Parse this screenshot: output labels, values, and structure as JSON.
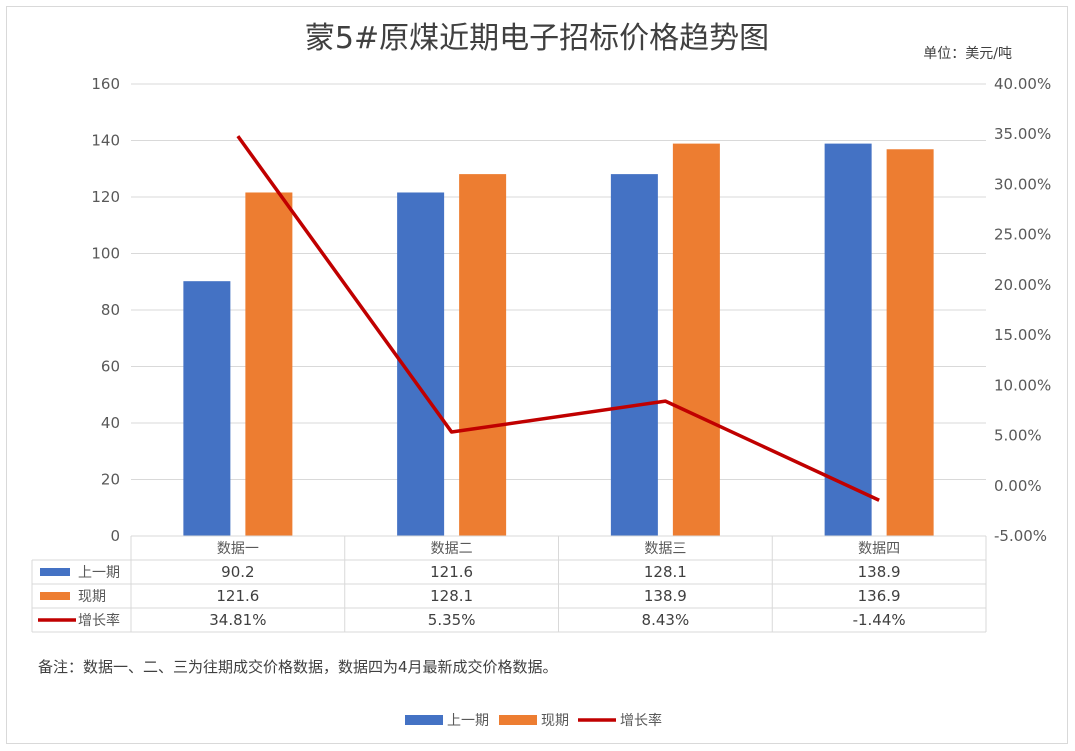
{
  "title": "蒙5#原煤近期电子招标价格趋势图",
  "unit": "单位：美元/吨",
  "note": "备注：数据一、二、三为往期成交价格数据，数据四为4月最新成交价格数据。",
  "colors": {
    "prev": "#4472C4",
    "curr": "#ED7D31",
    "rate": "#C00000"
  },
  "chart_data": {
    "type": "bar",
    "categories": [
      "数据一",
      "数据二",
      "数据三",
      "数据四"
    ],
    "series": [
      {
        "name": "上一期",
        "kind": "bar",
        "axis": "left",
        "values": [
          90.2,
          121.6,
          128.1,
          138.9
        ],
        "labels": [
          "90.2",
          "121.6",
          "128.1",
          "138.9"
        ]
      },
      {
        "name": "现期",
        "kind": "bar",
        "axis": "left",
        "values": [
          121.6,
          128.1,
          138.9,
          136.9
        ],
        "labels": [
          "121.6",
          "128.1",
          "138.9",
          "136.9"
        ]
      },
      {
        "name": "增长率",
        "kind": "line",
        "axis": "right",
        "values": [
          34.81,
          5.35,
          8.43,
          -1.44
        ],
        "labels": [
          "34.81%",
          "5.35%",
          "8.43%",
          "-1.44%"
        ]
      }
    ],
    "ylim_left": [
      0,
      160
    ],
    "ylim_right": [
      -5,
      40
    ],
    "left_ticks": [
      "0",
      "20",
      "40",
      "60",
      "80",
      "100",
      "120",
      "140",
      "160"
    ],
    "right_ticks": [
      "-5.00%",
      "0.00%",
      "5.00%",
      "10.00%",
      "15.00%",
      "20.00%",
      "25.00%",
      "30.00%",
      "35.00%",
      "40.00%"
    ],
    "grid": true,
    "legend_position": "bottom",
    "data_table": true
  }
}
